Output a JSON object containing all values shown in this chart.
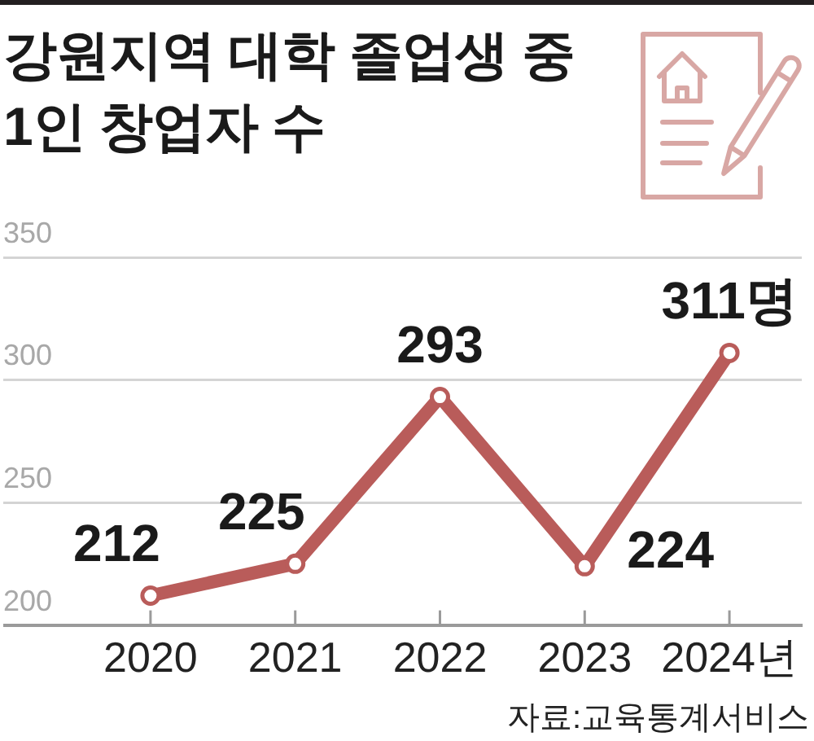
{
  "chart_data": {
    "type": "line",
    "title": "강원지역 대학 졸업생 중 1인 창업자 수",
    "categories": [
      "2020",
      "2021",
      "2022",
      "2023",
      "2024년"
    ],
    "values": [
      212,
      225,
      293,
      224,
      311
    ],
    "value_labels": [
      "212",
      "225",
      "293",
      "224",
      "311명"
    ],
    "color": "#b95c5a",
    "ylim": [
      200,
      350
    ],
    "yticks": [
      200,
      250,
      300,
      350
    ],
    "grid": "y",
    "marker": "circle",
    "annotations": [
      "자료:교육통계서비스"
    ]
  }
}
